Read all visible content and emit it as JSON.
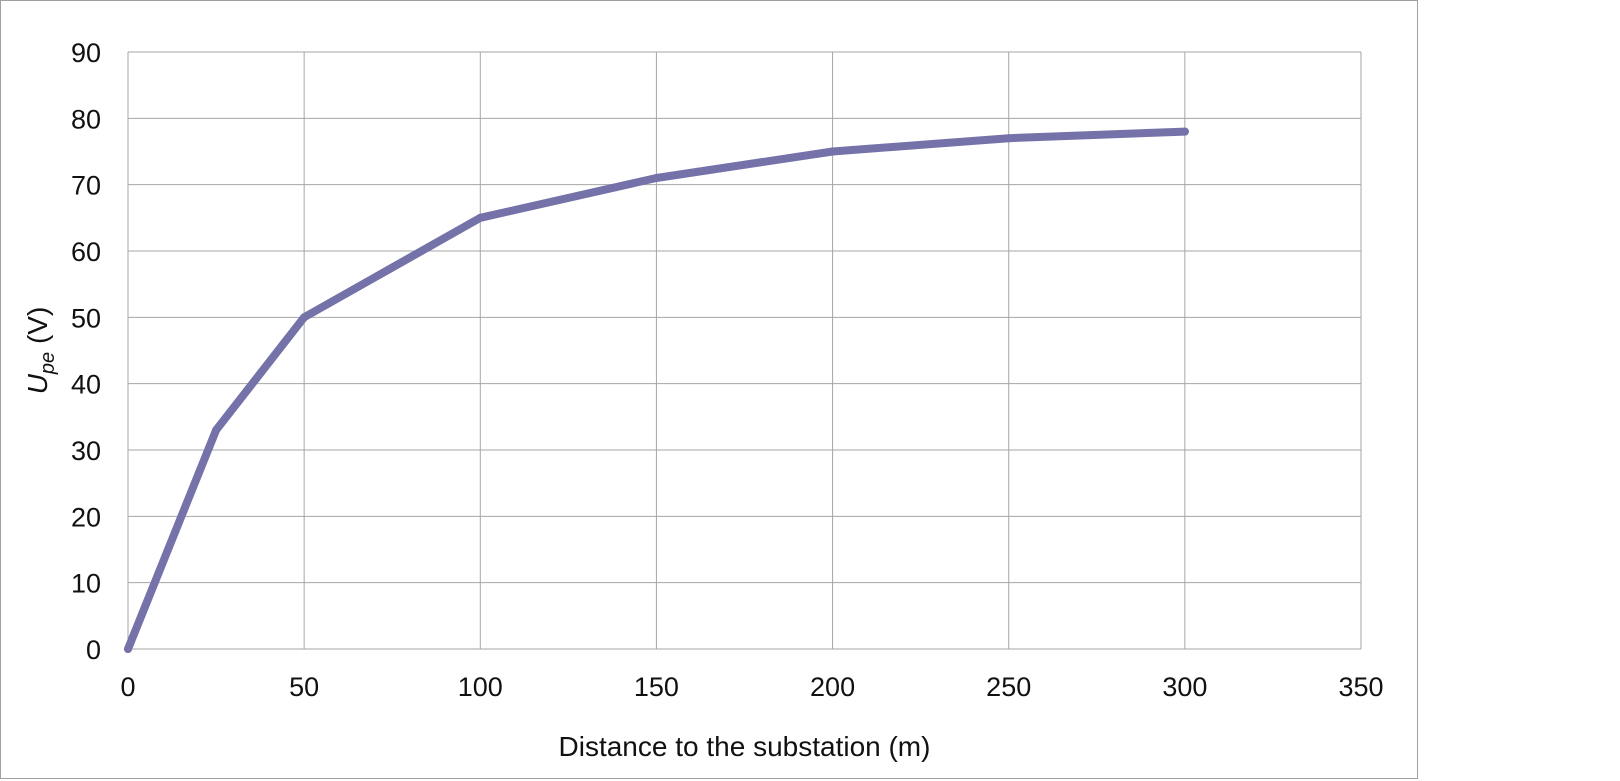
{
  "chart_data": {
    "type": "line",
    "title": "",
    "xlabel": "Distance to the substation (m)",
    "ylabel_main": "U",
    "ylabel_sub": "pe",
    "ylabel_unit": " (V)",
    "xlim": [
      0,
      350
    ],
    "ylim": [
      0,
      90
    ],
    "xticks": [
      0,
      50,
      100,
      150,
      200,
      250,
      300,
      350
    ],
    "yticks": [
      0,
      10,
      20,
      30,
      40,
      50,
      60,
      70,
      80,
      90
    ],
    "grid": true,
    "series": [
      {
        "name": "Upe",
        "color": "#7472a8",
        "x": [
          0,
          25,
          50,
          100,
          150,
          200,
          250,
          300
        ],
        "y": [
          0,
          33,
          50,
          65,
          71,
          75,
          77,
          78
        ]
      }
    ]
  }
}
